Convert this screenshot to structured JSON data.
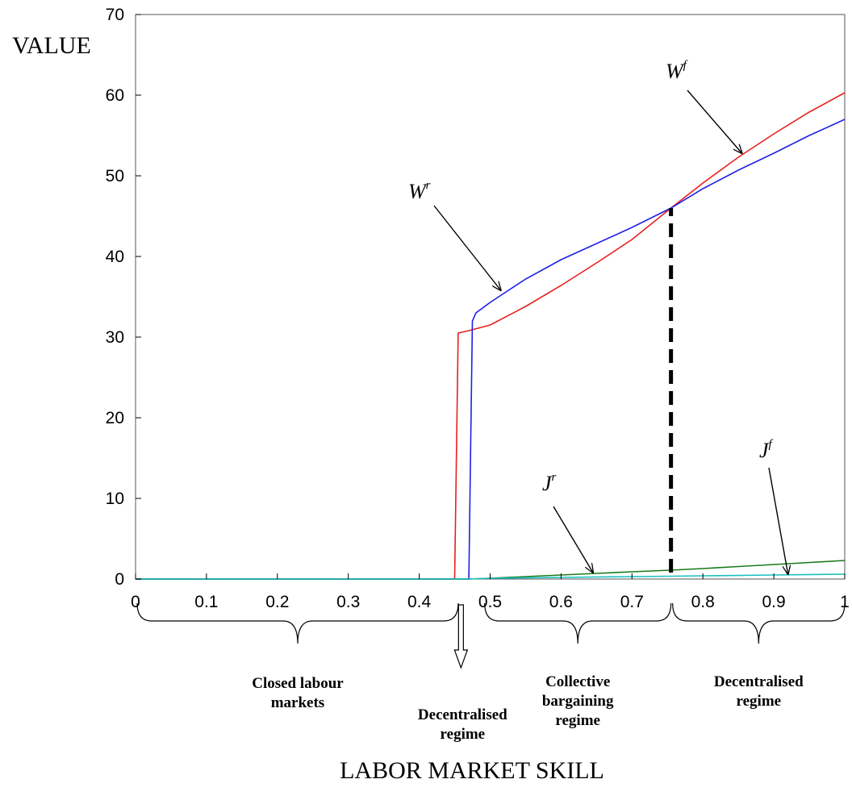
{
  "chart_data": {
    "type": "line",
    "title": "",
    "xlabel": "LABOR MARKET SKILL",
    "ylabel": "VALUE",
    "xlim": [
      0,
      1
    ],
    "ylim": [
      0,
      70
    ],
    "xticks": [
      "0",
      "0.1",
      "0.2",
      "0.3",
      "0.4",
      "0.5",
      "0.6",
      "0.7",
      "0.8",
      "0.9",
      "1"
    ],
    "yticks": [
      "0",
      "10",
      "20",
      "30",
      "40",
      "50",
      "60",
      "70"
    ],
    "grid": false,
    "legend": "none",
    "series": [
      {
        "color": "#e8201e",
        "points": [
          [
            0,
            0
          ],
          [
            0.45,
            0
          ],
          [
            0.455,
            30.5
          ],
          [
            0.47,
            30.8
          ],
          [
            0.5,
            31.5
          ],
          [
            0.55,
            33.8
          ],
          [
            0.6,
            36.4
          ],
          [
            0.65,
            39.2
          ],
          [
            0.7,
            42.1
          ],
          [
            0.755,
            46.0
          ],
          [
            0.8,
            49.1
          ],
          [
            0.85,
            52.3
          ],
          [
            0.9,
            55.2
          ],
          [
            0.95,
            57.9
          ],
          [
            1.0,
            60.3
          ]
        ]
      },
      {
        "color": "#2020e8",
        "points": [
          [
            0,
            0
          ],
          [
            0.47,
            0
          ],
          [
            0.475,
            32.0
          ],
          [
            0.48,
            33.0
          ],
          [
            0.5,
            34.3
          ],
          [
            0.55,
            37.2
          ],
          [
            0.6,
            39.6
          ],
          [
            0.65,
            41.6
          ],
          [
            0.7,
            43.6
          ],
          [
            0.755,
            46.0
          ],
          [
            0.8,
            48.4
          ],
          [
            0.85,
            50.7
          ],
          [
            0.9,
            52.8
          ],
          [
            0.95,
            55.0
          ],
          [
            1.0,
            57.0
          ]
        ]
      },
      {
        "color": "#1b7a1b",
        "points": [
          [
            0,
            0
          ],
          [
            0.47,
            0
          ],
          [
            0.5,
            0.1
          ],
          [
            0.55,
            0.3
          ],
          [
            0.6,
            0.5
          ],
          [
            0.65,
            0.7
          ],
          [
            0.7,
            0.9
          ],
          [
            0.755,
            1.1
          ],
          [
            0.8,
            1.3
          ],
          [
            0.85,
            1.55
          ],
          [
            0.9,
            1.8
          ],
          [
            0.95,
            2.05
          ],
          [
            1.0,
            2.3
          ]
        ]
      },
      {
        "color": "#19c0c0",
        "points": [
          [
            0,
            0
          ],
          [
            0.47,
            0
          ],
          [
            0.5,
            0.1
          ],
          [
            0.6,
            0.2
          ],
          [
            0.7,
            0.3
          ],
          [
            0.755,
            0.35
          ],
          [
            0.8,
            0.4
          ],
          [
            0.9,
            0.5
          ],
          [
            1.0,
            0.6
          ]
        ]
      }
    ],
    "threshold": {
      "x": 0.755,
      "y_top": 46.0
    },
    "annotations": [
      {
        "id": "wr",
        "text": "W",
        "sup": "r",
        "tip": [
          0.515,
          35.8
        ]
      },
      {
        "id": "wf",
        "text": "W",
        "sup": "f",
        "tip": [
          0.855,
          52.8
        ]
      },
      {
        "id": "jr",
        "text": "J",
        "sup": "r",
        "tip": [
          0.645,
          0.8
        ]
      },
      {
        "id": "jf",
        "text": "J",
        "sup": "f",
        "tip": [
          0.92,
          0.6
        ]
      }
    ],
    "regimes": [
      {
        "id": "closed",
        "lines": [
          "Closed labour",
          "markets"
        ],
        "x_range": [
          0,
          0.455
        ]
      },
      {
        "id": "dec1",
        "lines": [
          "Decentralised",
          "regime"
        ],
        "x_point": 0.46
      },
      {
        "id": "collective",
        "lines": [
          "Collective",
          "bargaining",
          "regime"
        ],
        "x_range": [
          0.49,
          0.755
        ]
      },
      {
        "id": "dec2",
        "lines": [
          "Decentralised",
          "regime"
        ],
        "x_range": [
          0.755,
          1.0
        ]
      }
    ]
  }
}
